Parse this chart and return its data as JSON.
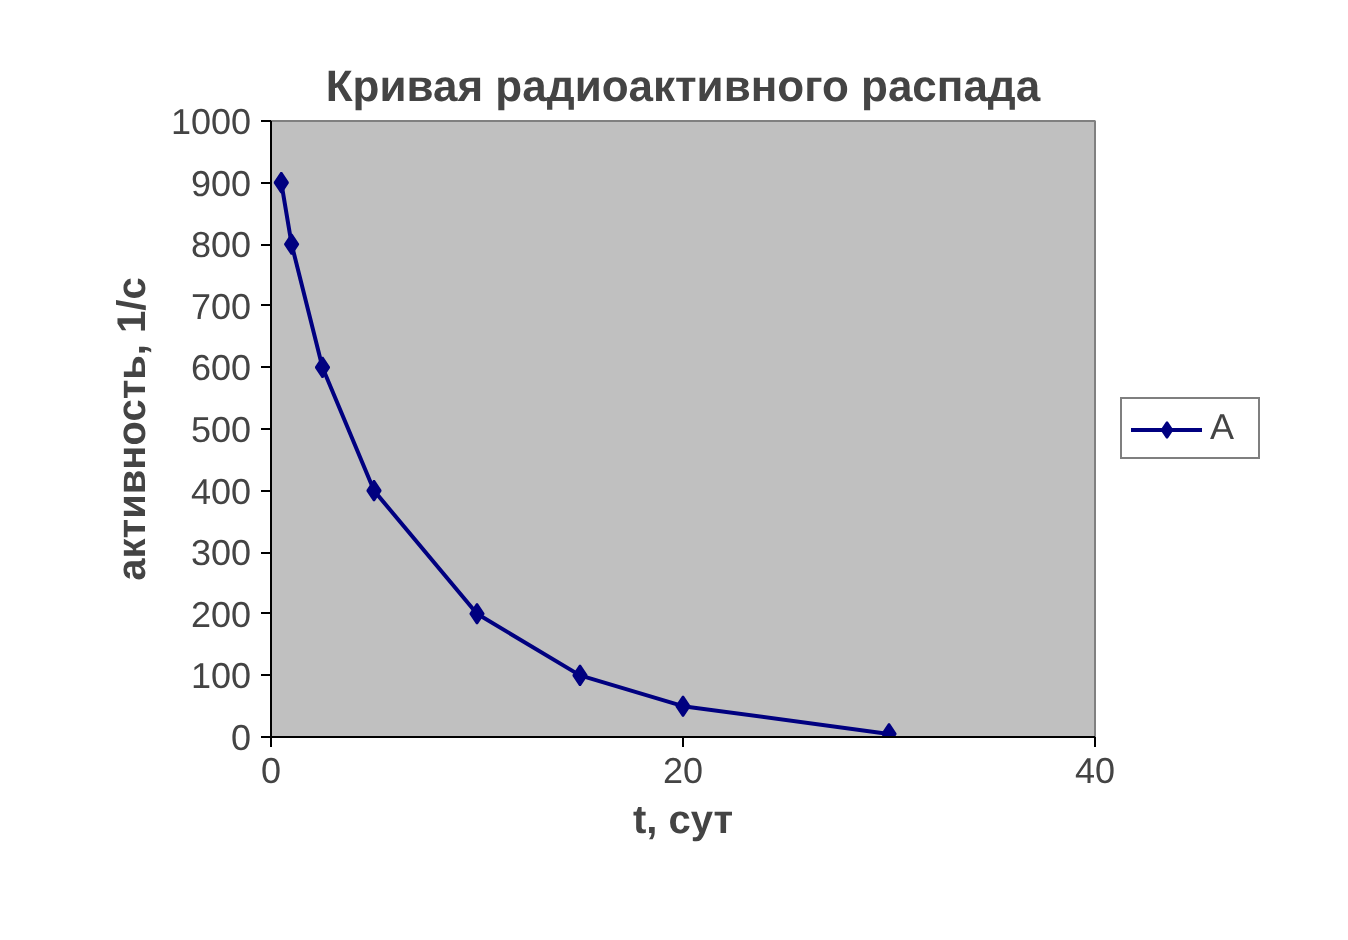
{
  "chart_data": {
    "type": "line",
    "title": "Кривая радиоактивного распада",
    "xlabel": "t, сут",
    "ylabel": "активность, 1/с",
    "x": [
      0.5,
      1,
      2.5,
      5,
      10,
      15,
      20,
      30
    ],
    "series": [
      {
        "name": "A",
        "color": "#000080",
        "values": [
          900,
          800,
          600,
          400,
          200,
          100,
          50,
          5
        ]
      }
    ],
    "xlim": [
      0,
      40
    ],
    "xticks": [
      0,
      20,
      40
    ],
    "ylim": [
      0,
      1000
    ],
    "yticks": [
      0,
      100,
      200,
      300,
      400,
      500,
      600,
      700,
      800,
      900,
      1000
    ],
    "grid": false,
    "legend": "right",
    "marker": "diamond",
    "line_style": "solid"
  }
}
